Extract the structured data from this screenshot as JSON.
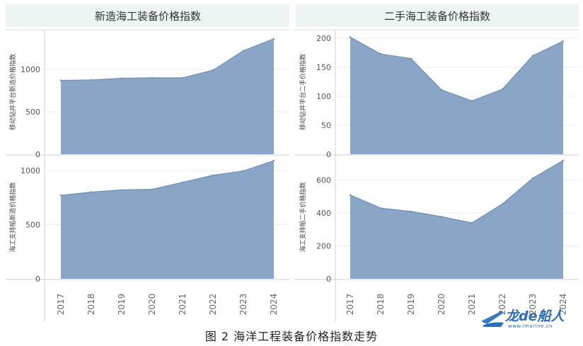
{
  "caption": "图 2 海洋工程装备价格指数走势",
  "watermark": {
    "text": "龙de船人",
    "url_text": "www.imarine.cn",
    "color": "#2c6db3"
  },
  "colors": {
    "area": "#8aa6c6",
    "area_line": "#6f8fb5",
    "header_bg": "#eef4f4",
    "grid": "#ececec"
  },
  "chart_data": [
    {
      "type": "area",
      "panel_title": "新造海工装备价格指数",
      "ylabel": "移动钻井平台新造价格指数",
      "x": [
        "2017",
        "2018",
        "2019",
        "2020",
        "2021",
        "2022",
        "2023",
        "2024"
      ],
      "values": [
        870,
        875,
        895,
        900,
        900,
        990,
        1220,
        1360
      ],
      "ylim": [
        0,
        1400
      ],
      "yticks": [
        0,
        500,
        1000
      ]
    },
    {
      "type": "area",
      "panel_title": "二手海工装备价格指数",
      "ylabel": "移动钻井平台二手价格指数",
      "x": [
        "2017",
        "2018",
        "2019",
        "2020",
        "2021",
        "2022",
        "2023",
        "2024"
      ],
      "values": [
        202,
        173,
        165,
        111,
        92,
        112,
        170,
        195
      ],
      "ylim": [
        0,
        205
      ],
      "yticks": [
        0,
        50,
        100,
        150,
        200
      ]
    },
    {
      "type": "area",
      "panel_title": "新造海工装备价格指数",
      "ylabel": "海工支持船新造价格指数",
      "x": [
        "2017",
        "2018",
        "2019",
        "2020",
        "2021",
        "2022",
        "2023",
        "2024"
      ],
      "values": [
        770,
        800,
        820,
        825,
        890,
        955,
        995,
        1090
      ],
      "ylim": [
        0,
        1110
      ],
      "yticks": [
        0,
        500,
        1000
      ]
    },
    {
      "type": "area",
      "panel_title": "二手海工装备价格指数",
      "ylabel": "海工支持船二手价格指数",
      "x": [
        "2017",
        "2018",
        "2019",
        "2020",
        "2021",
        "2022",
        "2023",
        "2024"
      ],
      "values": [
        510,
        430,
        410,
        378,
        340,
        455,
        612,
        720
      ],
      "ylim": [
        0,
        732
      ],
      "yticks": [
        0,
        200,
        400,
        600
      ]
    }
  ]
}
